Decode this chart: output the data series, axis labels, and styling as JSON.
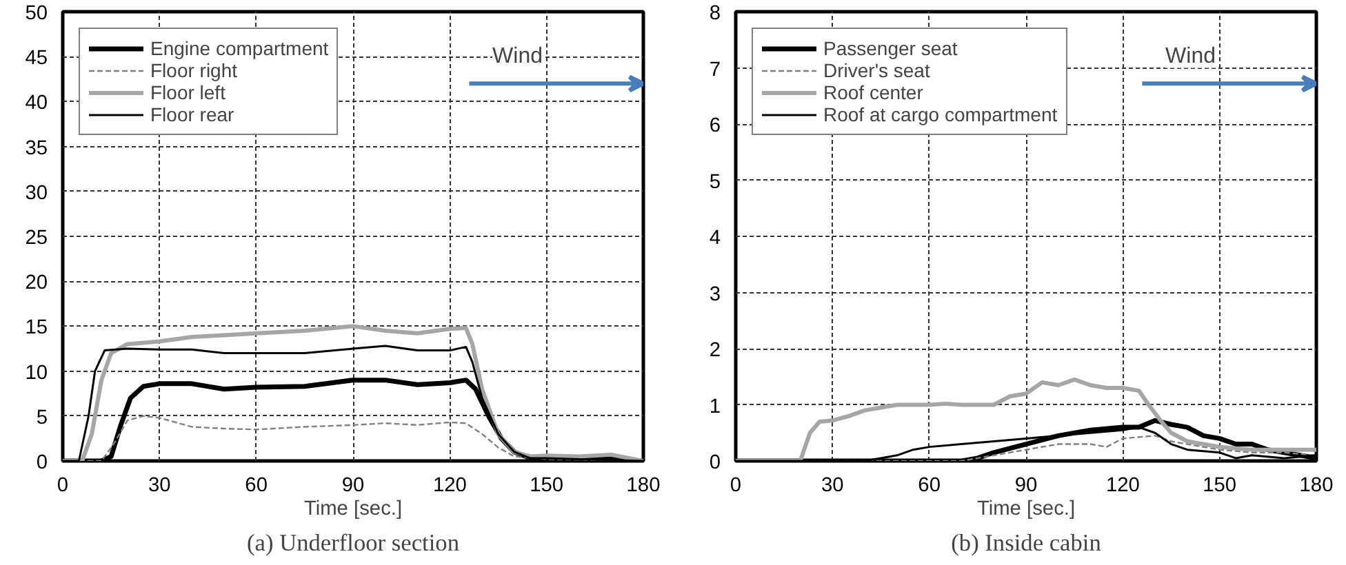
{
  "chart_data": [
    {
      "type": "line",
      "title": "(a) Underfloor section",
      "xlabel": "Time [sec.]",
      "xlim": [
        0,
        180
      ],
      "xticks": [
        0,
        30,
        60,
        90,
        120,
        150,
        180
      ],
      "ylim": [
        0,
        50
      ],
      "yticks": [
        0,
        5,
        10,
        15,
        20,
        25,
        30,
        35,
        40,
        45,
        50
      ],
      "grid": true,
      "legend": "top left",
      "annotations": [
        "Wind"
      ],
      "series": [
        {
          "name": "Engine compartment",
          "color": "#000000",
          "line_style": "solid",
          "x": [
            0,
            12,
            15,
            18,
            21,
            25,
            30,
            40,
            50,
            60,
            75,
            90,
            100,
            110,
            120,
            125,
            128,
            132,
            136,
            140,
            145,
            150,
            160,
            170,
            180
          ],
          "values": [
            0,
            0,
            0.5,
            4,
            7,
            8.3,
            8.6,
            8.6,
            8,
            8.2,
            8.3,
            9,
            9,
            8.5,
            8.7,
            9,
            8,
            5,
            2.5,
            1,
            0.3,
            0.2,
            0.3,
            0.2,
            0
          ]
        },
        {
          "name": "Floor right",
          "color": "#808080",
          "line_style": "dashed",
          "x": [
            0,
            12,
            16,
            20,
            25,
            30,
            40,
            50,
            60,
            75,
            90,
            100,
            110,
            120,
            125,
            130,
            135,
            140,
            150,
            180
          ],
          "values": [
            0,
            0,
            2,
            4.5,
            5,
            4.8,
            3.8,
            3.6,
            3.5,
            3.8,
            4,
            4.2,
            4,
            4.3,
            4.2,
            3,
            1.5,
            0.5,
            0.2,
            0
          ]
        },
        {
          "name": "Floor left",
          "color": "#a6a6a6",
          "line_style": "solid",
          "x": [
            0,
            6,
            9,
            12,
            15,
            20,
            30,
            40,
            50,
            60,
            75,
            90,
            100,
            110,
            120,
            125,
            127,
            130,
            135,
            140,
            145,
            150,
            160,
            170,
            180
          ],
          "values": [
            0,
            0,
            3,
            9,
            12,
            13,
            13.3,
            13.8,
            14,
            14.2,
            14.5,
            15,
            14.5,
            14.2,
            14.7,
            14.8,
            13,
            8,
            3,
            1,
            0.5,
            0.6,
            0.5,
            0.7,
            0
          ]
        },
        {
          "name": "Floor rear",
          "color": "#000000",
          "line_style": "solid",
          "x": [
            0,
            5,
            8,
            10,
            13,
            20,
            30,
            40,
            50,
            60,
            75,
            90,
            100,
            110,
            120,
            125,
            127,
            130,
            135,
            140,
            145,
            150,
            160,
            180
          ],
          "values": [
            0,
            0,
            5,
            10,
            12.3,
            12.5,
            12.4,
            12.4,
            12,
            12,
            12,
            12.5,
            12.8,
            12.3,
            12.3,
            12.7,
            11,
            7,
            3,
            1,
            0.3,
            0.3,
            0.2,
            0
          ]
        }
      ]
    },
    {
      "type": "line",
      "title": "(b) Inside cabin",
      "xlabel": "Time [sec.]",
      "xlim": [
        0,
        180
      ],
      "xticks": [
        0,
        30,
        60,
        90,
        120,
        150,
        180
      ],
      "ylim": [
        0,
        8
      ],
      "yticks": [
        0,
        1,
        2,
        3,
        4,
        5,
        6,
        7,
        8
      ],
      "grid": true,
      "legend": "top left",
      "annotations": [
        "Wind"
      ],
      "series": [
        {
          "name": "Passenger seat",
          "color": "#000000",
          "line_style": "solid",
          "x": [
            0,
            70,
            75,
            80,
            90,
            100,
            110,
            120,
            125,
            130,
            135,
            140,
            145,
            150,
            155,
            160,
            165,
            170,
            180
          ],
          "values": [
            0,
            0,
            0.05,
            0.15,
            0.3,
            0.45,
            0.55,
            0.6,
            0.6,
            0.72,
            0.65,
            0.6,
            0.45,
            0.4,
            0.3,
            0.3,
            0.2,
            0.15,
            0.05
          ]
        },
        {
          "name": "Driver's seat",
          "color": "#808080",
          "line_style": "dashed",
          "x": [
            0,
            70,
            80,
            90,
            100,
            110,
            115,
            120,
            130,
            135,
            140,
            150,
            160,
            170,
            180
          ],
          "values": [
            0,
            0,
            0.1,
            0.2,
            0.3,
            0.3,
            0.25,
            0.4,
            0.45,
            0.35,
            0.3,
            0.2,
            0.15,
            0.15,
            0.1
          ]
        },
        {
          "name": "Roof center",
          "color": "#a6a6a6",
          "line_style": "solid",
          "x": [
            0,
            20,
            23,
            26,
            30,
            35,
            40,
            45,
            50,
            55,
            60,
            65,
            70,
            80,
            85,
            90,
            95,
            100,
            105,
            110,
            115,
            120,
            125,
            128,
            132,
            135,
            140,
            150,
            160,
            170,
            180
          ],
          "values": [
            0,
            0,
            0.5,
            0.7,
            0.72,
            0.8,
            0.9,
            0.95,
            1.0,
            1.0,
            1.0,
            1.02,
            1.0,
            1.0,
            1.15,
            1.2,
            1.4,
            1.35,
            1.45,
            1.35,
            1.3,
            1.3,
            1.25,
            1.0,
            0.7,
            0.5,
            0.35,
            0.25,
            0.2,
            0.2,
            0.2
          ]
        },
        {
          "name": "Roof at cargo compartment",
          "color": "#000000",
          "line_style": "solid",
          "x": [
            0,
            40,
            45,
            50,
            55,
            60,
            70,
            80,
            90,
            100,
            110,
            120,
            125,
            130,
            135,
            140,
            150,
            155,
            160,
            170,
            180
          ],
          "values": [
            0,
            0,
            0.05,
            0.1,
            0.2,
            0.25,
            0.3,
            0.35,
            0.4,
            0.45,
            0.5,
            0.55,
            0.6,
            0.5,
            0.3,
            0.2,
            0.15,
            0.05,
            0.1,
            0.05,
            0.1
          ]
        }
      ]
    }
  ]
}
